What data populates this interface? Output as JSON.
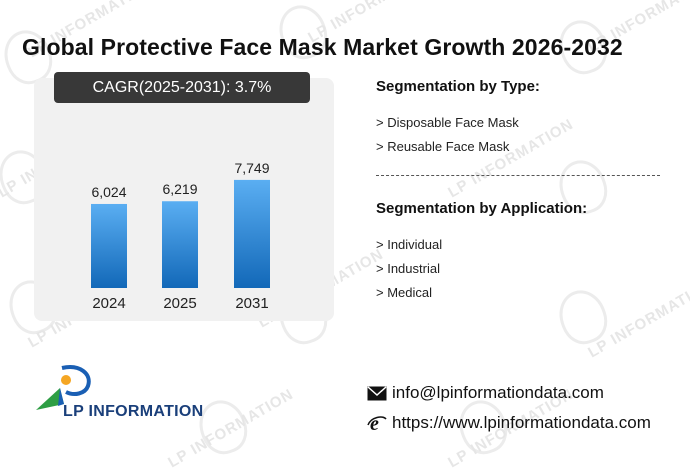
{
  "title": "Global Protective Face Mask Market Growth 2026-2032",
  "cagr_label": "CAGR(2025-2031):  3.7%",
  "chart_data": {
    "type": "bar",
    "title": "",
    "categories": [
      "2024",
      "2025",
      "2031"
    ],
    "values": [
      6024,
      6219,
      7749
    ],
    "value_labels": [
      "6,024",
      "6,219",
      "7,749"
    ],
    "xlabel": "",
    "ylabel": "",
    "grid": false,
    "bar_color_top": "#5aaef2",
    "bar_color_bottom": "#1268b8"
  },
  "segmentation": {
    "type_heading": "Segmentation by Type:",
    "types": [
      "> Disposable Face Mask",
      "> Reusable Face Mask"
    ],
    "application_heading": "Segmentation by Application:",
    "applications": [
      "> Individual",
      "> Industrial",
      "> Medical"
    ]
  },
  "brand": {
    "logo_text": "LP INFORMATION",
    "watermark": "LP INFORMATION"
  },
  "contact": {
    "email": "info@lpinformationdata.com",
    "website": "https://www.lpinformationdata.com",
    "email_icon": "envelope-icon",
    "website_icon": "internet-explorer-icon"
  }
}
